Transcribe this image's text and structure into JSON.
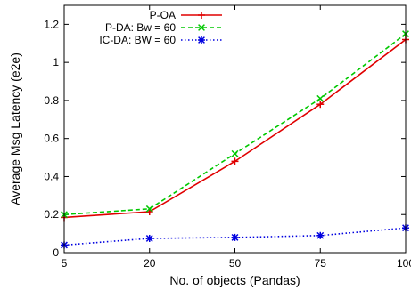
{
  "chart_data": {
    "type": "line",
    "xlabel": "No. of objects (Pandas)",
    "ylabel": "Average Msg Latency (e2e)",
    "categories": [
      "5",
      "20",
      "50",
      "75",
      "100"
    ],
    "yticks": [
      "0",
      "0.2",
      "0.4",
      "0.6",
      "0.8",
      "1",
      "1.2"
    ],
    "ylim": [
      0,
      1.3
    ],
    "grid": false,
    "legend_position": "top-left",
    "series": [
      {
        "name": "P-OA",
        "values": [
          0.185,
          0.215,
          0.48,
          0.78,
          1.12
        ],
        "color": "#e00000",
        "dash": "solid",
        "marker": "plus"
      },
      {
        "name": "P-DA: Bw = 60",
        "values": [
          0.2,
          0.23,
          0.52,
          0.81,
          1.15
        ],
        "color": "#00c800",
        "dash": "dashed",
        "marker": "cross"
      },
      {
        "name": "IC-DA: BW = 60",
        "values": [
          0.04,
          0.075,
          0.08,
          0.09,
          0.13
        ],
        "color": "#0000e0",
        "dash": "dotted",
        "marker": "star"
      }
    ]
  }
}
